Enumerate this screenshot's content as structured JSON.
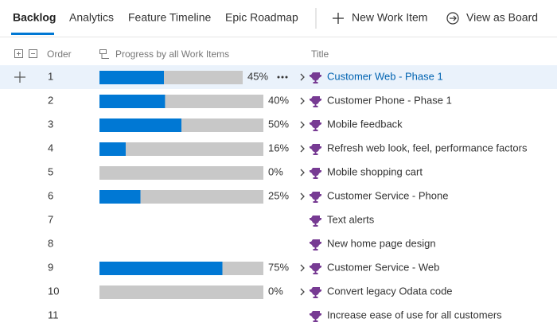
{
  "tabs": [
    "Backlog",
    "Analytics",
    "Feature Timeline",
    "Epic Roadmap"
  ],
  "actions": [
    "New Work Item",
    "View as Board"
  ],
  "columns": [
    "Order",
    "Progress by all Work Items",
    "Title"
  ],
  "rows": [
    {
      "order": 1,
      "progress": 45,
      "progress_label": "45%",
      "title": "Customer Web - Phase 1"
    },
    {
      "order": 2,
      "progress": 40,
      "progress_label": "40%",
      "title": "Customer Phone - Phase 1"
    },
    {
      "order": 3,
      "progress": 50,
      "progress_label": "50%",
      "title": "Mobile feedback"
    },
    {
      "order": 4,
      "progress": 16,
      "progress_label": "16%",
      "title": "Refresh web look, feel, performance factors"
    },
    {
      "order": 5,
      "progress": 0,
      "progress_label": "0%",
      "title": "Mobile shopping cart"
    },
    {
      "order": 6,
      "progress": 25,
      "progress_label": "25%",
      "title": "Customer Service - Phone"
    },
    {
      "order": 7,
      "title": "Text alerts"
    },
    {
      "order": 8,
      "title": "New home page design"
    },
    {
      "order": 9,
      "progress": 75,
      "progress_label": "75%",
      "title": "Customer Service - Web"
    },
    {
      "order": 10,
      "progress": 0,
      "progress_label": "0%",
      "title": "Convert legacy Odata code"
    },
    {
      "order": 11,
      "title": "Increase ease of use for all customers"
    }
  ]
}
